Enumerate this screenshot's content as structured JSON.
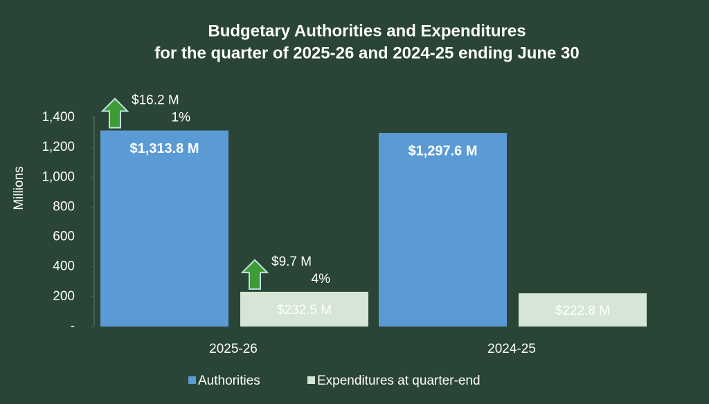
{
  "chart_data": {
    "type": "bar",
    "title": "Budgetary Authorities and Expenditures",
    "subtitle": "for the quarter of 2025-26 and 2024-25 ending June 30",
    "y_label": "Millions",
    "categories": [
      "2025-26",
      "2024-25"
    ],
    "series": [
      {
        "name": "Authorities",
        "color": "#5b9bd5",
        "values": [
          1313.8,
          1297.6
        ],
        "value_labels": [
          "$1,313.8 M",
          "$1,297.6 M"
        ]
      },
      {
        "name": "Expenditures at quarter-end",
        "color": "#d5e6d6",
        "values": [
          232.5,
          222.8
        ],
        "value_labels": [
          "$232.5 M",
          "$222.8 M"
        ]
      }
    ],
    "annotations": [
      {
        "change": "$16.2 M",
        "percent": "1%"
      },
      {
        "change": "$9.7 M",
        "percent": "4%"
      }
    ],
    "ylim": [
      0,
      1400
    ],
    "yticks": [
      {
        "value": 0,
        "label": "-"
      },
      200,
      400,
      600,
      800,
      {
        "value": 1000,
        "label": "1,000"
      },
      {
        "value": 1200,
        "label": "1,200"
      },
      {
        "value": 1400,
        "label": "1,400"
      }
    ],
    "legend": "bottom"
  }
}
